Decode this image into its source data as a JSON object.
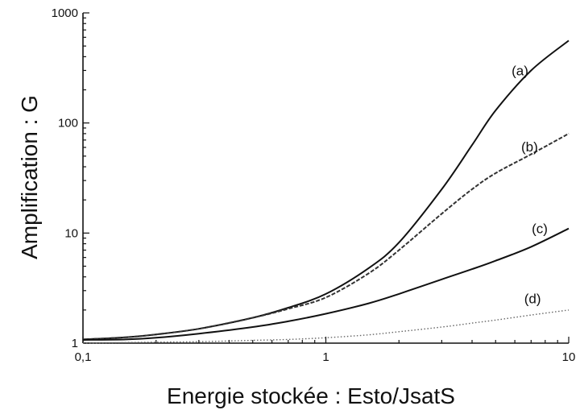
{
  "chart_data": {
    "type": "line",
    "title": "",
    "xlabel": "Energie stockée : Esto/JsatS",
    "ylabel": "Amplification : G",
    "xscale": "log",
    "yscale": "log",
    "xlim": [
      0.1,
      10
    ],
    "ylim": [
      1,
      1000
    ],
    "grid": false,
    "x_ticks": [
      {
        "value": 0.1,
        "label": "0,1"
      },
      {
        "value": 1,
        "label": "1"
      },
      {
        "value": 10,
        "label": "10"
      }
    ],
    "y_ticks": [
      {
        "value": 1,
        "label": "1"
      },
      {
        "value": 10,
        "label": "10"
      },
      {
        "value": 100,
        "label": "100"
      },
      {
        "value": 1000,
        "label": "1000"
      }
    ],
    "series": [
      {
        "name": "(a)",
        "style": "solid",
        "color": "#111111",
        "x": [
          0.1,
          0.15,
          0.2,
          0.3,
          0.5,
          0.7,
          1,
          1.5,
          2,
          3,
          4,
          5,
          7,
          10
        ],
        "y": [
          1.08,
          1.13,
          1.2,
          1.35,
          1.7,
          2.1,
          2.8,
          4.8,
          8.2,
          25,
          63,
          130,
          300,
          560
        ]
      },
      {
        "name": "(b)",
        "style": "dashed",
        "color": "#333333",
        "x": [
          0.1,
          0.15,
          0.2,
          0.3,
          0.5,
          0.7,
          1,
          1.5,
          2,
          3,
          4,
          5,
          7,
          10
        ],
        "y": [
          1.08,
          1.13,
          1.2,
          1.35,
          1.7,
          2.05,
          2.6,
          4.3,
          7,
          15,
          25,
          35,
          52,
          80
        ]
      },
      {
        "name": "(c)",
        "style": "solid",
        "color": "#111111",
        "x": [
          0.1,
          0.15,
          0.2,
          0.3,
          0.5,
          0.7,
          1,
          1.5,
          2,
          3,
          4,
          5,
          7,
          10
        ],
        "y": [
          1.07,
          1.08,
          1.12,
          1.22,
          1.4,
          1.58,
          1.85,
          2.3,
          2.8,
          3.8,
          4.7,
          5.6,
          7.5,
          11
        ]
      },
      {
        "name": "(d)",
        "style": "dotted",
        "color": "#666666",
        "x": [
          0.1,
          0.2,
          0.3,
          0.5,
          0.7,
          1,
          1.5,
          2,
          3,
          4,
          5,
          7,
          10
        ],
        "y": [
          1.0,
          1.02,
          1.03,
          1.06,
          1.08,
          1.12,
          1.19,
          1.27,
          1.4,
          1.52,
          1.62,
          1.8,
          2.0
        ]
      }
    ],
    "labels": [
      {
        "text": "(a)",
        "series": "(a)",
        "at_x": 6.3,
        "at_y": 270
      },
      {
        "text": "(b)",
        "series": "(b)",
        "at_x": 6.9,
        "at_y": 55
      },
      {
        "text": "(c)",
        "series": "(c)",
        "at_x": 7.6,
        "at_y": 10
      },
      {
        "text": "(d)",
        "series": "(d)",
        "at_x": 7.1,
        "at_y": 2.3
      }
    ]
  }
}
